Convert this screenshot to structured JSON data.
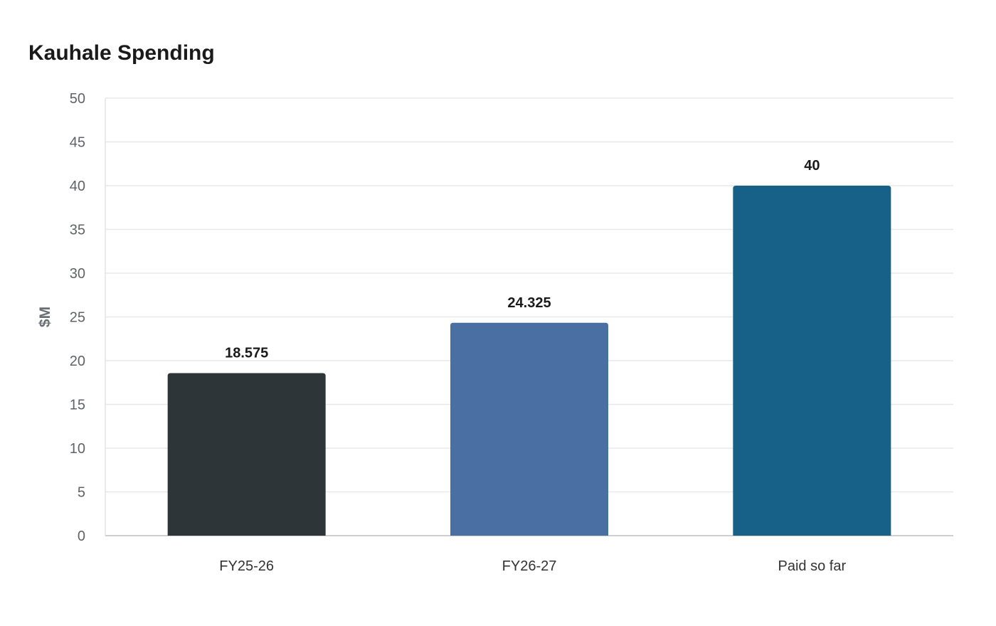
{
  "chart_data": {
    "type": "bar",
    "title": "Kauhale Spending",
    "xlabel": "",
    "ylabel": "$M",
    "categories": [
      "FY25-26",
      "FY26-27",
      "Paid so far"
    ],
    "values": [
      18.575,
      24.325,
      40
    ],
    "value_labels": [
      "18.575",
      "24.325",
      "40"
    ],
    "colors": [
      "#2e3538",
      "#4a6fa3",
      "#176189"
    ],
    "ylim": [
      0,
      50
    ],
    "yticks": [
      0,
      5,
      10,
      15,
      20,
      25,
      30,
      35,
      40,
      45,
      50
    ],
    "grid": true,
    "legend": "none"
  }
}
